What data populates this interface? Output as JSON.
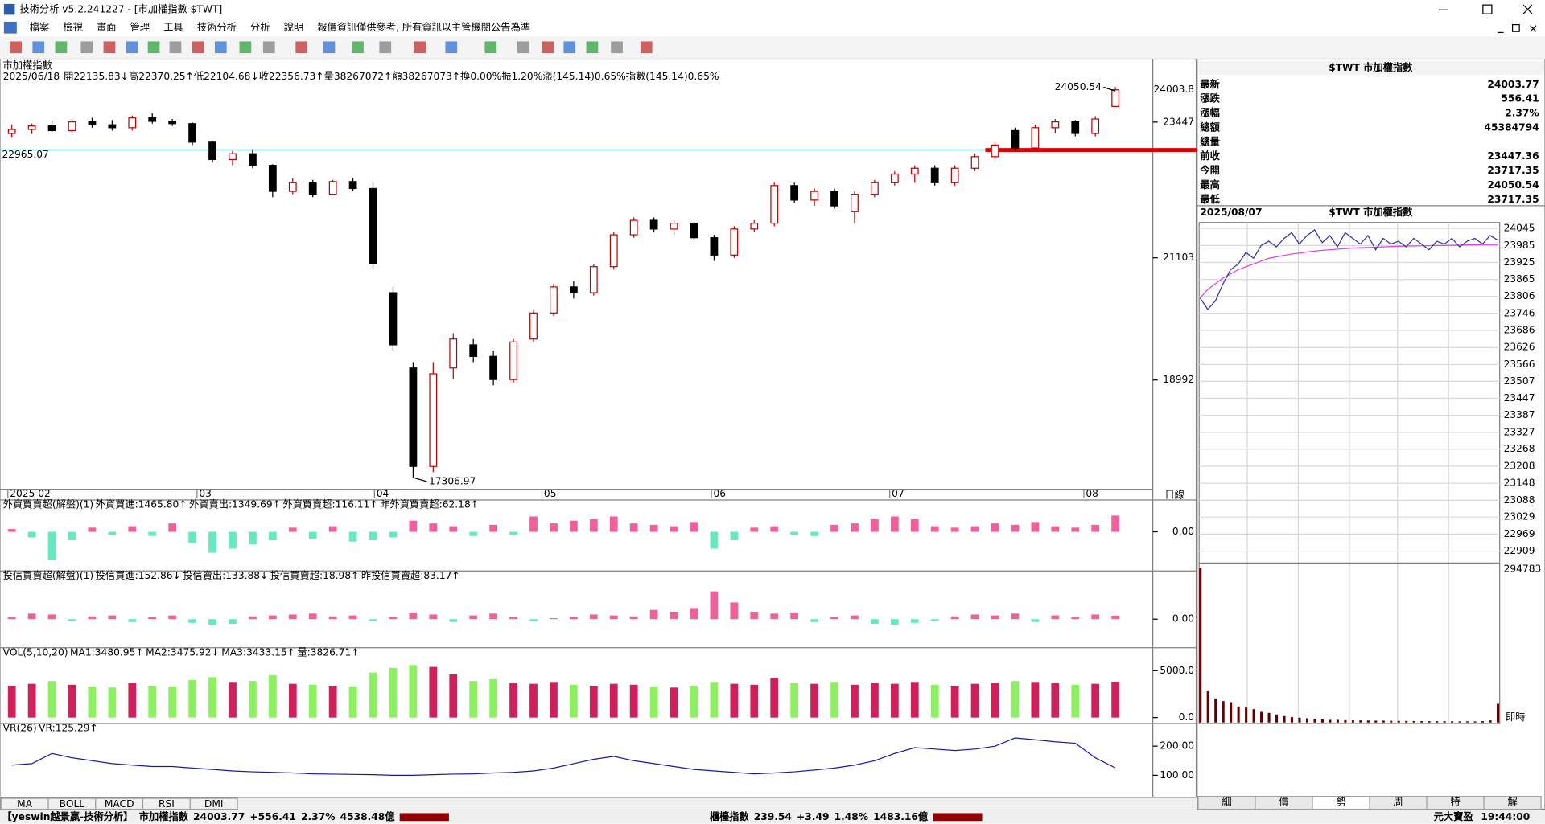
{
  "window": {
    "title": "技術分析 v5.2.241227 - [市加權指數 $TWT]"
  },
  "menu": [
    "檔案",
    "檢視",
    "畫面",
    "管理",
    "工具",
    "技術分析",
    "分析",
    "說明",
    "報價資訊僅供參考, 所有資訊以主管機關公告為準"
  ],
  "price_chart": {
    "type": "candlestick",
    "name": "市加權指數",
    "info": [
      "2025/06/18",
      "開22135.83↓",
      "高22370.25↑",
      "低22104.68↓",
      "收22356.73↑",
      "量38267072↑",
      "額38267073↑",
      "換0.00%",
      "振1.20%",
      "漲(145.14)0.65%",
      "指數(145.14)0.65%"
    ],
    "candles": [
      [
        23250,
        23400,
        23180,
        23320
      ],
      [
        23320,
        23420,
        23240,
        23380
      ],
      [
        23380,
        23460,
        23280,
        23300
      ],
      [
        23300,
        23500,
        23250,
        23450
      ],
      [
        23450,
        23520,
        23350,
        23400
      ],
      [
        23400,
        23480,
        23300,
        23350
      ],
      [
        23350,
        23560,
        23300,
        23520
      ],
      [
        23520,
        23600,
        23420,
        23460
      ],
      [
        23460,
        23500,
        23380,
        23420
      ],
      [
        23420,
        23440,
        23050,
        23100
      ],
      [
        23100,
        23120,
        22750,
        22800
      ],
      [
        22800,
        22950,
        22700,
        22900
      ],
      [
        22900,
        22980,
        22650,
        22700
      ],
      [
        22700,
        22720,
        22150,
        22250
      ],
      [
        22250,
        22480,
        22200,
        22400
      ],
      [
        22400,
        22450,
        22150,
        22200
      ],
      [
        22200,
        22450,
        22180,
        22420
      ],
      [
        22420,
        22480,
        22250,
        22300
      ],
      [
        22300,
        22400,
        20900,
        21000
      ],
      [
        20500,
        20600,
        19500,
        19600
      ],
      [
        19200,
        19300,
        17306.97,
        17500
      ],
      [
        17500,
        19300,
        17400,
        19100
      ],
      [
        19200,
        19800,
        19000,
        19700
      ],
      [
        19600,
        19700,
        19300,
        19400
      ],
      [
        19400,
        19500,
        18900,
        19000
      ],
      [
        19000,
        19700,
        18950,
        19650
      ],
      [
        19700,
        20200,
        19650,
        20150
      ],
      [
        20150,
        20650,
        20100,
        20600
      ],
      [
        20600,
        20700,
        20400,
        20500
      ],
      [
        20500,
        21000,
        20450,
        20950
      ],
      [
        20950,
        21550,
        20900,
        21500
      ],
      [
        21500,
        21800,
        21450,
        21750
      ],
      [
        21750,
        21800,
        21550,
        21600
      ],
      [
        21600,
        21750,
        21500,
        21700
      ],
      [
        21700,
        21720,
        21400,
        21450
      ],
      [
        21450,
        21500,
        21050,
        21150
      ],
      [
        21150,
        21650,
        21100,
        21600
      ],
      [
        21600,
        21750,
        21550,
        21700
      ],
      [
        21700,
        22400,
        21650,
        22350
      ],
      [
        22350,
        22400,
        22050,
        22100
      ],
      [
        22100,
        22300,
        22000,
        22250
      ],
      [
        22250,
        22300,
        21950,
        22000
      ],
      [
        21900,
        22250,
        21700,
        22200
      ],
      [
        22200,
        22450,
        22150,
        22400
      ],
      [
        22400,
        22600,
        22350,
        22550
      ],
      [
        22550,
        22700,
        22400,
        22650
      ],
      [
        22650,
        22700,
        22350,
        22400
      ],
      [
        22400,
        22700,
        22350,
        22650
      ],
      [
        22650,
        22900,
        22600,
        22850
      ],
      [
        22850,
        23100,
        22800,
        23050
      ],
      [
        23300,
        23350,
        22950,
        23000
      ],
      [
        23000,
        23400,
        22980,
        23350
      ],
      [
        23350,
        23500,
        23250,
        23450
      ],
      [
        23450,
        23480,
        23200,
        23250
      ],
      [
        23250,
        23550,
        23200,
        23500
      ],
      [
        23717.35,
        24050.54,
        23717.35,
        24003.77
      ]
    ],
    "up_color": "#c00000",
    "down_color": "#000000",
    "ylim": [
      17106,
      24484
    ],
    "yticks": [
      23447,
      21103,
      18992
    ],
    "last_tick": 24003.8,
    "reference_line": 22965.07,
    "x_labels": [
      "2025 02",
      "03",
      "04",
      "05",
      "06",
      "07",
      "08"
    ],
    "period": "日線"
  },
  "foreign": {
    "type": "bar",
    "legend": [
      "外資買賣超(解盤)(1)",
      "外資買進:1465.80↑",
      "外資賣出:1349.69↑",
      "外資買賣超:116.11↑",
      "昨外資買賣超:62.18↑"
    ],
    "values": [
      20,
      -40,
      -200,
      -60,
      30,
      -20,
      40,
      -30,
      60,
      -80,
      -150,
      -120,
      -90,
      -60,
      30,
      -50,
      40,
      -70,
      -60,
      -40,
      80,
      60,
      40,
      -30,
      50,
      -20,
      110,
      60,
      80,
      90,
      110,
      60,
      50,
      40,
      70,
      -120,
      -60,
      30,
      40,
      -20,
      -30,
      50,
      60,
      90,
      110,
      90,
      40,
      30,
      40,
      60,
      50,
      70,
      40,
      30,
      50,
      116.11
    ],
    "ylim": [
      -252,
      157
    ],
    "yticks": [
      {
        "value": 0,
        "label": "0.00"
      }
    ],
    "pos_color": "#f0609a",
    "neg_color": "#66e8c0"
  },
  "trust": {
    "type": "bar",
    "legend": [
      "投信買賣超(解盤)(1)",
      "投信買進:152.86↓",
      "投信賣出:133.88↓",
      "投信買賣超:18.98↑",
      "昨投信買賣超:83.17↑"
    ],
    "values": [
      10,
      30,
      25,
      -10,
      15,
      20,
      -15,
      10,
      20,
      -20,
      -30,
      -25,
      15,
      20,
      25,
      30,
      15,
      20,
      -10,
      10,
      35,
      25,
      -15,
      20,
      30,
      10,
      -10,
      5,
      10,
      25,
      20,
      15,
      50,
      40,
      60,
      150,
      90,
      40,
      30,
      35,
      -15,
      10,
      20,
      -25,
      -30,
      -20,
      -10,
      15,
      25,
      20,
      30,
      -15,
      20,
      10,
      25,
      18.98
    ],
    "ylim": [
      -122,
      207
    ],
    "yticks": [
      {
        "value": 0,
        "label": "0.00"
      }
    ],
    "pos_color": "#f0609a",
    "neg_color": "#66e8c0"
  },
  "volume": {
    "type": "bar",
    "legend": [
      "VOL(5,10,20)",
      "MA1:3480.95↑",
      "MA2:3475.92↓",
      "MA3:3433.15↑",
      "量:3826.71↑"
    ],
    "values": [
      3400,
      3600,
      3900,
      3500,
      3300,
      3200,
      3700,
      3400,
      3300,
      4000,
      4300,
      3800,
      3900,
      4500,
      3600,
      3500,
      3400,
      3300,
      4800,
      5300,
      5600,
      5400,
      4600,
      3900,
      4100,
      3700,
      3600,
      3800,
      3500,
      3400,
      3600,
      3500,
      3300,
      3200,
      3400,
      3800,
      3600,
      3500,
      4200,
      3700,
      3600,
      3800,
      3500,
      3700,
      3600,
      3800,
      3500,
      3400,
      3600,
      3700,
      3900,
      3800,
      3700,
      3500,
      3600,
      3826.71
    ],
    "ylim": [
      0,
      6400
    ],
    "yticks": [
      {
        "value": 5000,
        "label": "5000.0"
      },
      {
        "value": 0,
        "label": "0.0"
      }
    ],
    "up_color": "#d0205a",
    "down_color": "#8cf060"
  },
  "vr": {
    "type": "line",
    "legend": [
      "VR(26)",
      "VR:125.29↑"
    ],
    "values": [
      135,
      140,
      175,
      160,
      150,
      140,
      135,
      130,
      130,
      125,
      120,
      115,
      112,
      110,
      108,
      105,
      104,
      103,
      102,
      100,
      100,
      102,
      104,
      105,
      108,
      110,
      115,
      125,
      140,
      155,
      165,
      150,
      140,
      130,
      120,
      115,
      110,
      105,
      108,
      112,
      118,
      125,
      135,
      150,
      175,
      195,
      190,
      185,
      190,
      200,
      228,
      222,
      215,
      210,
      160,
      125.29
    ],
    "ylim": [
      31,
      244
    ],
    "yticks": [
      {
        "value": 200,
        "label": "200.00"
      },
      {
        "value": 100,
        "label": "100.00"
      }
    ],
    "color": "#1a1aa0"
  },
  "quote": {
    "title": "$TWT 市加權指數",
    "rows": [
      [
        "最新",
        "24003.77"
      ],
      [
        "漲跌",
        "556.41"
      ],
      [
        "漲幅",
        "2.37%"
      ],
      [
        "總額",
        "45384794"
      ],
      [
        "總量"
      ],
      [
        "前收",
        "23447.36"
      ],
      [
        "今開",
        "23717.35"
      ],
      [
        "最高",
        "24050.54"
      ],
      [
        "最低",
        "23717.35"
      ]
    ]
  },
  "intraday": {
    "type": "line",
    "date": "2025/08/07",
    "title": "$TWT 市加權指數",
    "price": [
      23800,
      23760,
      23790,
      23850,
      23900,
      23920,
      23960,
      23940,
      23985,
      24000,
      23980,
      24010,
      24030,
      23990,
      24020,
      24040,
      23995,
      24020,
      23980,
      24030,
      24010,
      23990,
      24020,
      23970,
      24010,
      23990,
      24000,
      23980,
      24010,
      23990,
      23970,
      24000,
      23990,
      24010,
      23980,
      24000,
      24010,
      23990,
      24020,
      24003.77
    ],
    "average": [
      23800,
      23830,
      23850,
      23870,
      23885,
      23900,
      23910,
      23920,
      23930,
      23940,
      23945,
      23950,
      23955,
      23958,
      23962,
      23965,
      23968,
      23970,
      23972,
      23974,
      23976,
      23977,
      23978,
      23979,
      23980,
      23981,
      23982,
      23983,
      23983,
      23984,
      23984,
      23985,
      23985,
      23986,
      23986,
      23987,
      23987,
      23988,
      23988,
      23988
    ],
    "ylim": [
      22874,
      24059
    ],
    "yticks": [
      24045,
      23985,
      23925,
      23865,
      23806,
      23746,
      23686,
      23626,
      23566,
      23507,
      23447,
      23387,
      23327,
      23268,
      23208,
      23148,
      23088,
      23029,
      22969,
      22909
    ],
    "volume": [
      290000,
      60000,
      45000,
      40000,
      38000,
      30000,
      28000,
      25000,
      20000,
      18000,
      15000,
      12000,
      10000,
      9000,
      8000,
      7000,
      6000,
      5000,
      5000,
      4500,
      4000,
      4000,
      3800,
      3500,
      3500,
      3200,
      3000,
      3000,
      2800,
      2600,
      2500,
      2500,
      2400,
      2300,
      2200,
      2200,
      2100,
      2500,
      4000,
      35000
    ],
    "vlim": [
      0,
      294783
    ],
    "vticks": [
      294783
    ],
    "mode": "即時",
    "price_color": "#3030a0",
    "average_color": "#e040e0",
    "volume_color": "#600000"
  },
  "tabs": [
    "MA",
    "BOLL",
    "MACD",
    "RSI",
    "DMI"
  ],
  "side_tabs": [
    "細",
    "價",
    "勢",
    "周",
    "特",
    "解"
  ],
  "side_tab_selected": 2,
  "status": {
    "app": "【yeswin越景贏-技術分析】",
    "index1": [
      "市加權指數",
      "24003.77",
      "+556.41",
      "2.37%",
      "4538.48億"
    ],
    "index2": [
      "櫃檯指數",
      "239.54",
      "+3.49",
      "1.48%",
      "1483.16億"
    ],
    "broker": "元大寶盈",
    "time": "19:44:00"
  }
}
